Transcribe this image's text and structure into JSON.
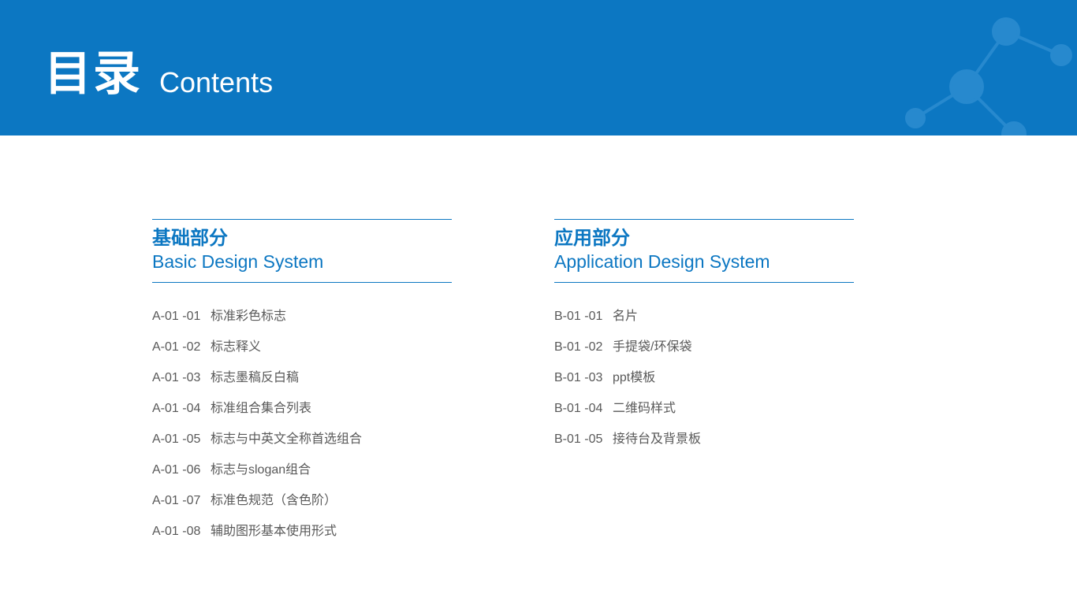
{
  "header": {
    "title_cn": "目录",
    "title_en": "Contents",
    "bg_color": "#0c77c2",
    "text_color": "#ffffff",
    "decor_color": "#2a8bd0"
  },
  "sections": [
    {
      "title_cn": "基础部分",
      "title_en": "Basic Design System",
      "accent_color": "#0c77c2",
      "items": [
        {
          "code": "A-01 -01",
          "label": "标准彩色标志"
        },
        {
          "code": "A-01 -02",
          "label": "标志释义"
        },
        {
          "code": "A-01 -03",
          "label": "标志墨稿反白稿"
        },
        {
          "code": "A-01 -04",
          "label": "标准组合集合列表"
        },
        {
          "code": "A-01 -05",
          "label": "标志与中英文全称首选组合"
        },
        {
          "code": "A-01 -06",
          "label": "标志与slogan组合"
        },
        {
          "code": "A-01 -07",
          "label": "标准色规范（含色阶）"
        },
        {
          "code": "A-01 -08",
          "label": "辅助图形基本使用形式"
        }
      ]
    },
    {
      "title_cn": "应用部分",
      "title_en": "Application Design System",
      "accent_color": "#0c77c2",
      "items": [
        {
          "code": "B-01 -01",
          "label": "名片"
        },
        {
          "code": "B-01 -02",
          "label": "手提袋/环保袋"
        },
        {
          "code": "B-01 -03",
          "label": "ppt模板"
        },
        {
          "code": "B-01 -04",
          "label": "二维码样式"
        },
        {
          "code": "B-01 -05",
          "label": "接待台及背景板"
        }
      ]
    }
  ],
  "item_text_color": "#595959",
  "background_color": "#ffffff"
}
